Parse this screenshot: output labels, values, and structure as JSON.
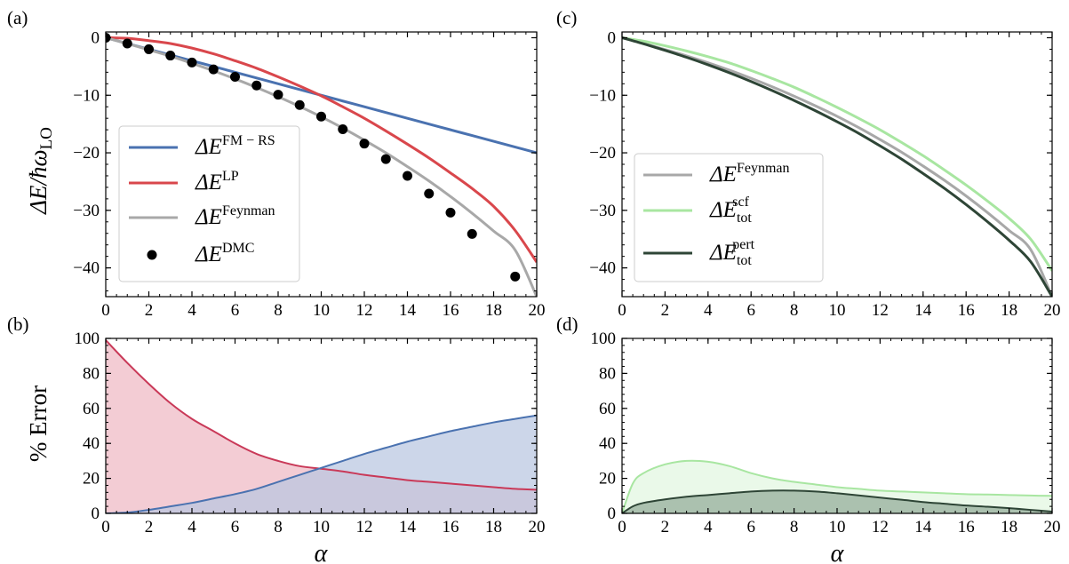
{
  "figure": {
    "panel_labels": [
      "(a)",
      "(b)",
      "(c)",
      "(d)"
    ],
    "ylabel_top": "ΔE/ħω",
    "ylabel_top_sub": "LO",
    "ylabel_bottom": "% Error",
    "xlabel": "α",
    "colors": {
      "fm_rs": "#4a72b0",
      "lp": "#d9474c",
      "feynman": "#a8a8a8",
      "dmc": "#000000",
      "scf": "#a8e6a1",
      "pert": "#2e4536",
      "err_lp_fill": "#efb8c4",
      "err_fm_fill": "#b8c6e0",
      "err_lp_line": "#c93958",
      "err_scf_fill": "#e2f7e0",
      "err_pert_fill": "#93ab99"
    }
  },
  "chart_data": [
    {
      "panel": "(a)",
      "type": "line",
      "xlim": [
        0,
        20
      ],
      "ylim": [
        -45,
        1
      ],
      "xticks": [
        0,
        2,
        4,
        6,
        8,
        10,
        12,
        14,
        16,
        18,
        20
      ],
      "yticks": [
        0,
        -10,
        -20,
        -30,
        -40
      ],
      "legend_position": "center-left",
      "x": [
        0,
        1,
        2,
        3,
        4,
        5,
        6,
        7,
        8,
        9,
        10,
        11,
        12,
        13,
        14,
        15,
        16,
        17,
        18,
        19,
        20
      ],
      "series": [
        {
          "name": "ΔE^{FM−RS}",
          "legend_main": "ΔE",
          "legend_sup": "FM − RS",
          "color_key": "fm_rs",
          "values": [
            0,
            -1.0,
            -2.0,
            -3.0,
            -4.0,
            -5.0,
            -6.0,
            -7.0,
            -8.0,
            -9.0,
            -10.0,
            -11.0,
            -12.0,
            -13.0,
            -14.0,
            -15.0,
            -16.0,
            -17.0,
            -18.0,
            -19.0,
            -20.0
          ]
        },
        {
          "name": "ΔE^{LP}",
          "legend_main": "ΔE",
          "legend_sup": "LP",
          "color_key": "lp",
          "values": [
            0,
            -0.1,
            -0.5,
            -1.0,
            -1.8,
            -2.8,
            -4.0,
            -5.3,
            -6.8,
            -8.4,
            -10.1,
            -12.0,
            -14.0,
            -16.2,
            -18.5,
            -20.9,
            -23.5,
            -26.2,
            -29.3,
            -33.5,
            -39.0
          ]
        },
        {
          "name": "ΔE^{Feynman}",
          "legend_main": "ΔE",
          "legend_sup": "Feynman",
          "color_key": "feynman",
          "values": [
            0,
            -1.02,
            -2.1,
            -3.2,
            -4.45,
            -5.75,
            -7.15,
            -8.65,
            -10.25,
            -11.95,
            -13.75,
            -15.7,
            -17.8,
            -20.0,
            -22.4,
            -24.9,
            -27.6,
            -30.5,
            -33.6,
            -36.9,
            -45.0
          ]
        }
      ],
      "points": {
        "name": "ΔE^{DMC}",
        "legend_main": "ΔE",
        "legend_sup": "DMC",
        "color_key": "dmc",
        "x": [
          0,
          1,
          2,
          3,
          4,
          5,
          6,
          7,
          8,
          9,
          10,
          11,
          12,
          13,
          14,
          15,
          16,
          17,
          19
        ],
        "y": [
          0,
          -1.0,
          -2.0,
          -3.1,
          -4.3,
          -5.5,
          -6.8,
          -8.3,
          -9.9,
          -11.7,
          -13.7,
          -15.9,
          -18.4,
          -21.1,
          -24.0,
          -27.1,
          -30.4,
          -34.1,
          -41.5
        ]
      }
    },
    {
      "panel": "(b)",
      "type": "area",
      "xlim": [
        0,
        20
      ],
      "ylim": [
        0,
        100
      ],
      "xticks": [
        0,
        2,
        4,
        6,
        8,
        10,
        12,
        14,
        16,
        18,
        20
      ],
      "yticks": [
        0,
        20,
        40,
        60,
        80,
        100
      ],
      "x": [
        0,
        1,
        2,
        3,
        4,
        5,
        6,
        7,
        8,
        9,
        10,
        11,
        12,
        13,
        14,
        15,
        16,
        17,
        18,
        19,
        20
      ],
      "series": [
        {
          "name": "LP error",
          "color_key": "err_lp_line",
          "fill_key": "err_lp_fill",
          "values": [
            99,
            86,
            74,
            63,
            54,
            47,
            40,
            34,
            30,
            27,
            25.5,
            24,
            22,
            20.5,
            19,
            18,
            17,
            16,
            15,
            14,
            13.5
          ]
        },
        {
          "name": "FM-RS error",
          "color_key": "fm_rs",
          "fill_key": "err_fm_fill",
          "values": [
            0,
            0.5,
            2,
            4,
            6,
            8.5,
            11,
            14,
            18,
            22,
            26,
            30,
            34,
            37.5,
            41,
            44,
            47,
            49.5,
            52,
            54,
            56
          ]
        }
      ]
    },
    {
      "panel": "(c)",
      "type": "line",
      "xlim": [
        0,
        20
      ],
      "ylim": [
        -45,
        1
      ],
      "xticks": [
        0,
        2,
        4,
        6,
        8,
        10,
        12,
        14,
        16,
        18,
        20
      ],
      "yticks": [
        0,
        -10,
        -20,
        -30,
        -40
      ],
      "legend_position": "center-left",
      "x": [
        0,
        1,
        2,
        3,
        4,
        5,
        6,
        7,
        8,
        9,
        10,
        11,
        12,
        13,
        14,
        15,
        16,
        17,
        18,
        19,
        20
      ],
      "series": [
        {
          "name": "ΔE^{Feynman}",
          "legend_main": "ΔE",
          "legend_sup": "Feynman",
          "color_key": "feynman",
          "values": [
            0,
            -1.0,
            -2.05,
            -3.15,
            -4.35,
            -5.65,
            -7.05,
            -8.55,
            -10.15,
            -11.85,
            -13.65,
            -15.6,
            -17.7,
            -19.9,
            -22.3,
            -24.8,
            -27.5,
            -30.4,
            -33.5,
            -36.8,
            -45.0
          ]
        },
        {
          "name": "ΔE_tot^{scf}",
          "legend_main": "ΔE",
          "legend_sup": "scf",
          "legend_sub": "tot",
          "color_key": "scf",
          "values": [
            0,
            -0.6,
            -1.4,
            -2.3,
            -3.3,
            -4.4,
            -5.7,
            -7.1,
            -8.6,
            -10.3,
            -12.1,
            -14.0,
            -16.0,
            -18.2,
            -20.5,
            -23.0,
            -25.6,
            -28.4,
            -31.4,
            -35.0,
            -40.5
          ]
        },
        {
          "name": "ΔE_tot^{pert}",
          "legend_main": "ΔE",
          "legend_sup": "pert",
          "legend_sub": "tot",
          "color_key": "pert",
          "values": [
            0,
            -1.05,
            -2.2,
            -3.4,
            -4.7,
            -6.1,
            -7.6,
            -9.2,
            -10.9,
            -12.7,
            -14.6,
            -16.6,
            -18.8,
            -21.1,
            -23.6,
            -26.2,
            -29.0,
            -32.0,
            -35.2,
            -38.9,
            -45.0
          ]
        }
      ]
    },
    {
      "panel": "(d)",
      "type": "area",
      "xlim": [
        0,
        20
      ],
      "ylim": [
        0,
        100
      ],
      "xticks": [
        0,
        2,
        4,
        6,
        8,
        10,
        12,
        14,
        16,
        18,
        20
      ],
      "yticks": [
        0,
        20,
        40,
        60,
        80,
        100
      ],
      "x": [
        0,
        0.5,
        1,
        2,
        3,
        4,
        5,
        6,
        7,
        8,
        9,
        10,
        11,
        12,
        13,
        14,
        15,
        16,
        17,
        18,
        19,
        20
      ],
      "series": [
        {
          "name": "scf error",
          "color_key": "scf",
          "fill_key": "err_scf_fill",
          "values": [
            0,
            17,
            23,
            28,
            30,
            29.5,
            27,
            23,
            20,
            18,
            16.5,
            15,
            14,
            13,
            12.5,
            12,
            11.5,
            11,
            10.8,
            10.5,
            10.2,
            10
          ]
        },
        {
          "name": "pert error",
          "color_key": "pert",
          "fill_key": "err_pert_fill",
          "values": [
            0,
            4,
            6,
            8,
            9.5,
            10.5,
            11.5,
            12.5,
            13,
            13,
            12.5,
            11.5,
            10.3,
            9,
            7.8,
            6.5,
            5.5,
            4.5,
            3.8,
            3,
            2,
            1
          ]
        }
      ]
    }
  ]
}
